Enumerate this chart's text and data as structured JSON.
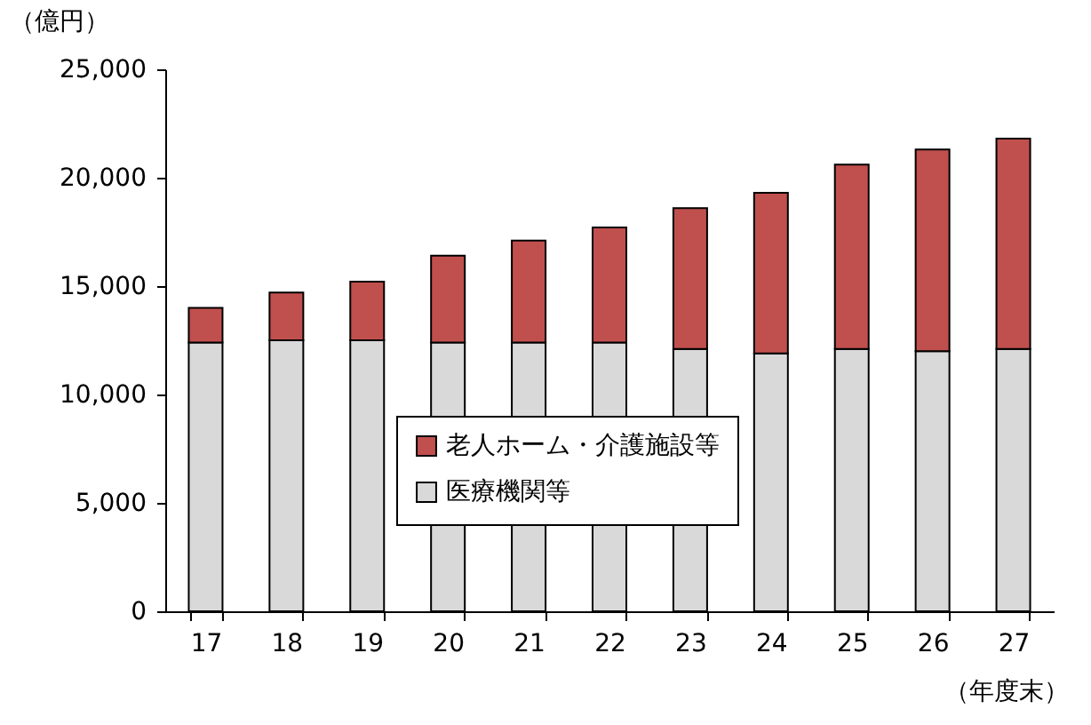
{
  "chart_data": {
    "type": "bar",
    "stacked": true,
    "ylabel": "（億円）",
    "xlabel": "（年度末）",
    "categories": [
      "17",
      "18",
      "19",
      "20",
      "21",
      "22",
      "23",
      "24",
      "25",
      "26",
      "27"
    ],
    "series": [
      {
        "name": "医療機関等",
        "color": "#d9d9d9",
        "values": [
          12400,
          12500,
          12500,
          12400,
          12400,
          12400,
          12100,
          11900,
          12100,
          12000,
          12100
        ]
      },
      {
        "name": "老人ホーム・介護施設等",
        "color": "#c0504d",
        "values": [
          1600,
          2200,
          2700,
          4000,
          4700,
          5300,
          6500,
          7400,
          8500,
          9300,
          9700
        ]
      }
    ],
    "ylim": [
      0,
      25000
    ],
    "yticks": [
      0,
      {
        "value": 5000,
        "label": "5,000"
      },
      {
        "value": 10000,
        "label": "10,000"
      },
      {
        "value": 15000,
        "label": "15,000"
      },
      {
        "value": 20000,
        "label": "20,000"
      },
      {
        "value": 25000,
        "label": "25,000"
      }
    ],
    "grid": false,
    "legend": "bottom"
  }
}
